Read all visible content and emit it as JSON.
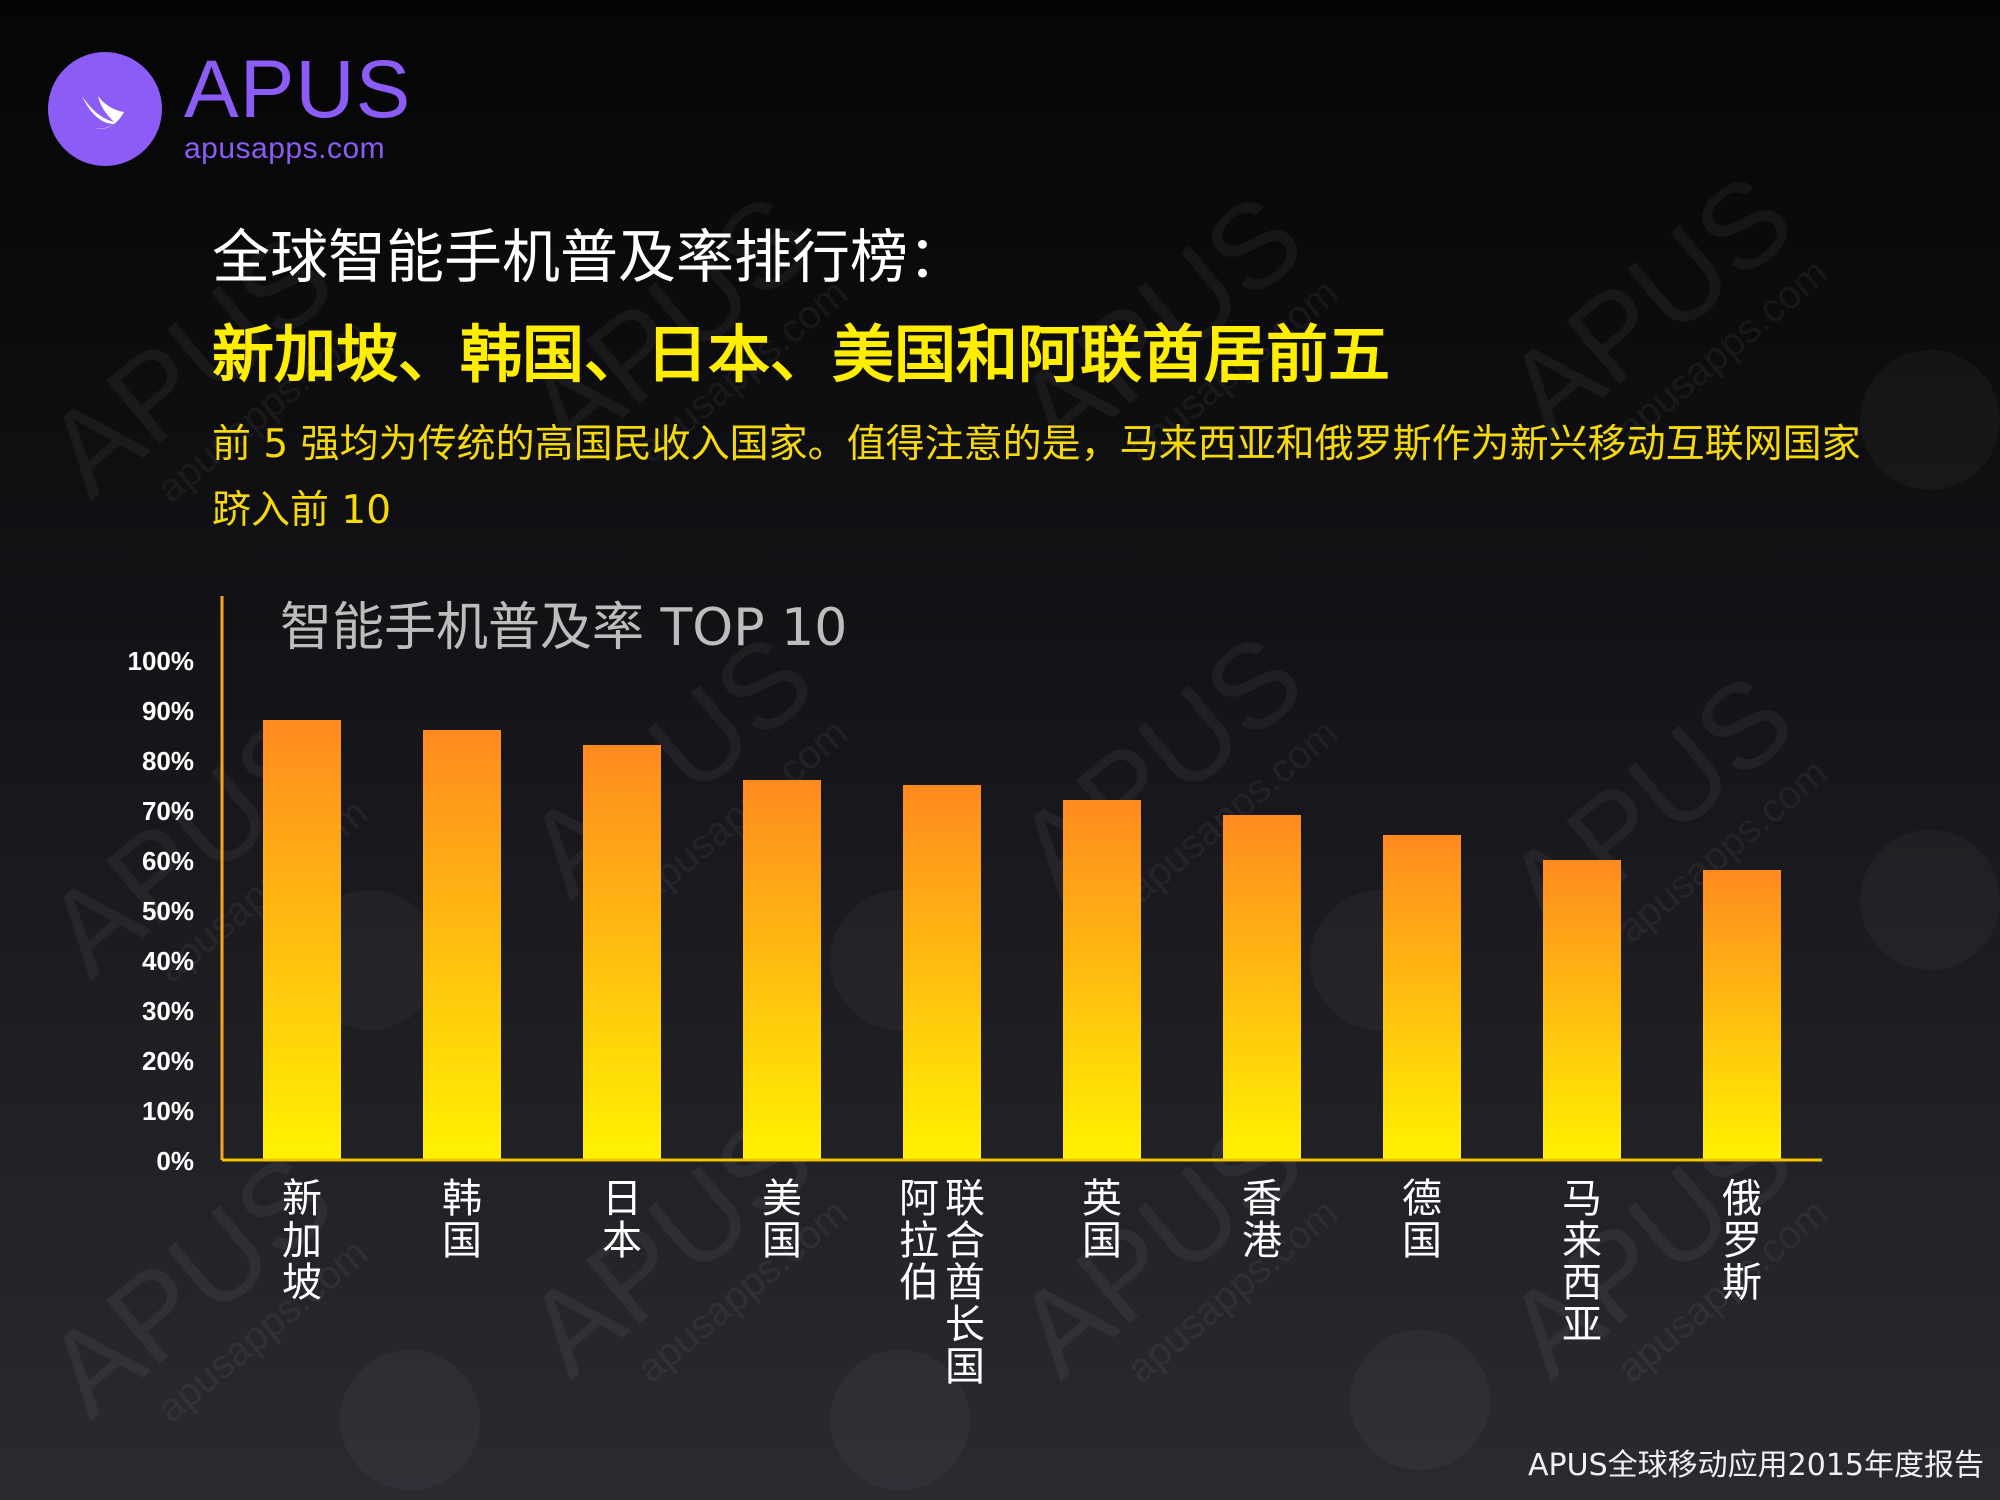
{
  "brand": {
    "name": "APUS",
    "domain": "apusapps.com",
    "accent": "#8B5CF6"
  },
  "heading": {
    "line1": "全球智能手机普及率排行榜：",
    "line2": "新加坡、韩国、日本、美国和阿联酋居前五",
    "description": "前 5 强均为传统的高国民收入国家。值得注意的是，马来西亚和俄罗斯作为新兴移动互联网国家跻入前 10"
  },
  "footer": "APUS全球移动应用2015年度报告",
  "watermark": {
    "text": "APUS",
    "subtext": "apusapps.com"
  },
  "chart_data": {
    "type": "bar",
    "title": "智能手机普及率 TOP 10",
    "categories": [
      "新加坡",
      "韩国",
      "日本",
      "美国",
      "阿联酋",
      "英国",
      "香港",
      "德国",
      "马来西亚",
      "俄罗斯"
    ],
    "category_labels": [
      [
        "新加坡"
      ],
      [
        "韩国"
      ],
      [
        "日本"
      ],
      [
        "美国"
      ],
      [
        "联合酋长国",
        "阿拉伯"
      ],
      [
        "英国"
      ],
      [
        "香港"
      ],
      [
        "德国"
      ],
      [
        "马来西亚"
      ],
      [
        "俄罗斯"
      ]
    ],
    "values": [
      88,
      86,
      83,
      76,
      75,
      72,
      69,
      65,
      60,
      58
    ],
    "ylim": [
      0,
      100
    ],
    "yticks": [
      "0%",
      "10%",
      "20%",
      "30%",
      "40%",
      "50%",
      "60%",
      "70%",
      "80%",
      "90%",
      "100%"
    ],
    "grid": false,
    "legend": "none",
    "colors": {
      "bar_top": "#FF8A1F",
      "bar_bottom": "#FFF200",
      "axis": "#F5A623",
      "tick_text": "#FFFFFF"
    }
  }
}
